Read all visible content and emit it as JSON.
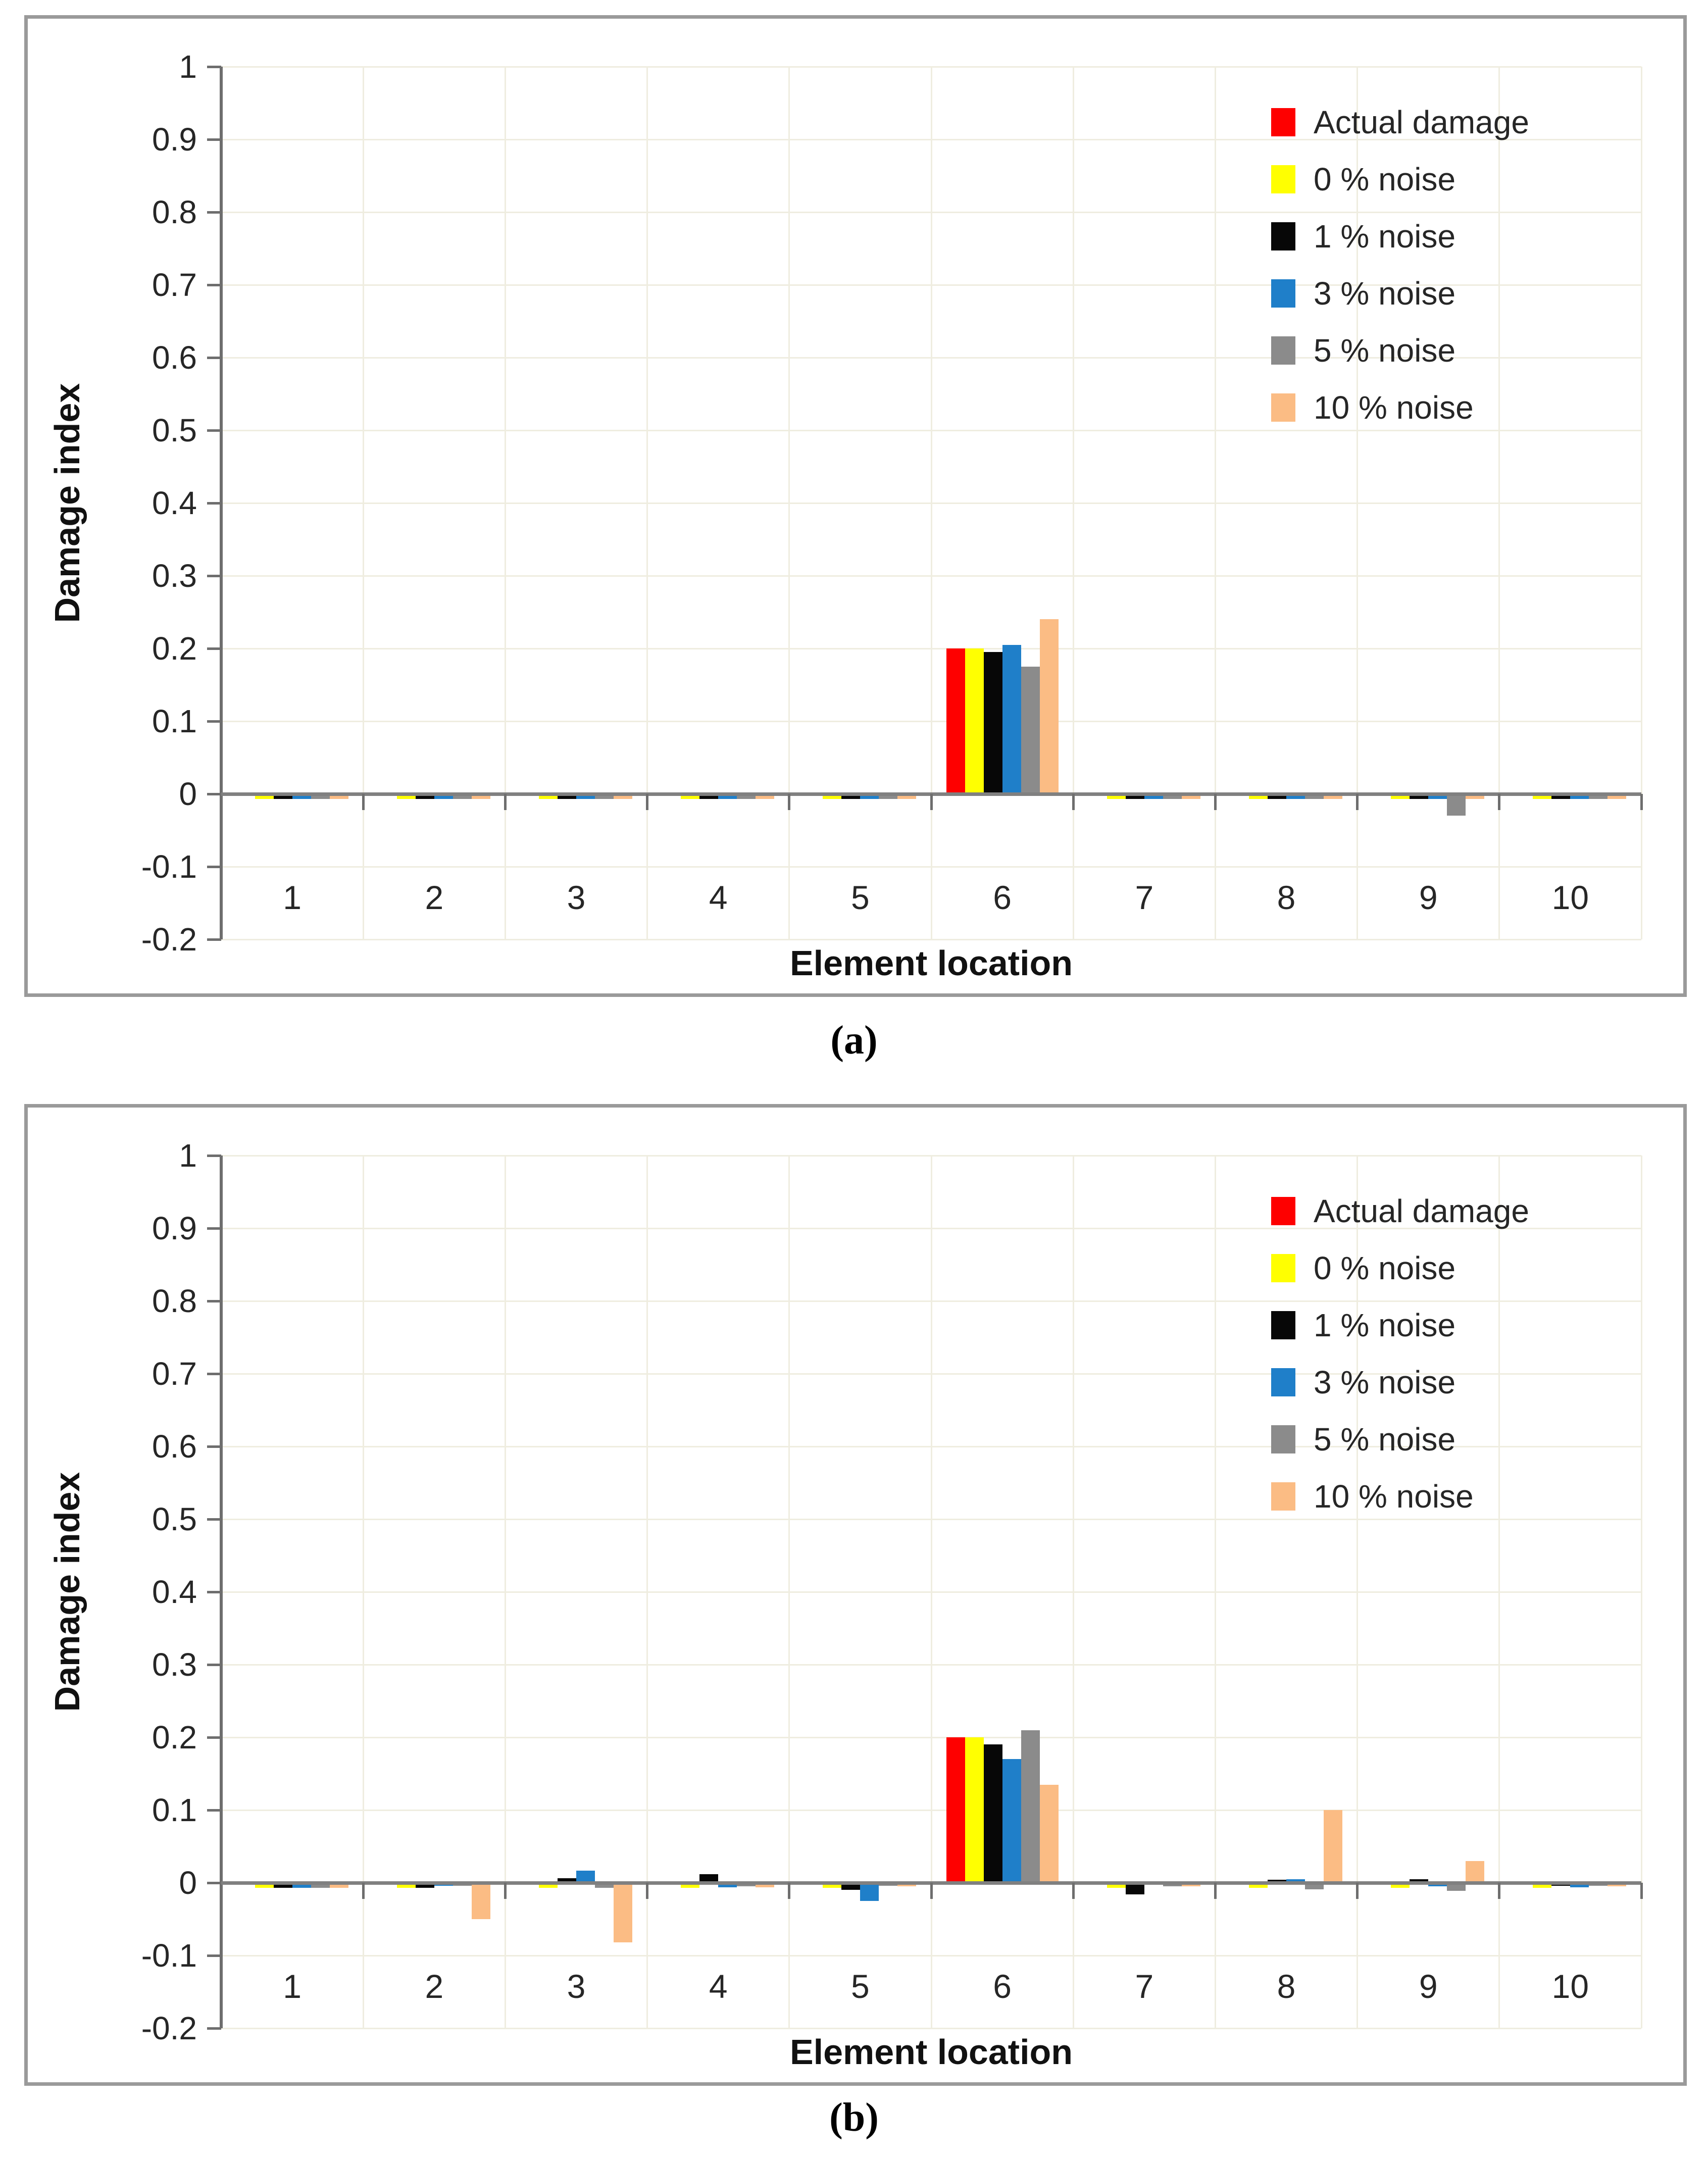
{
  "figure_a": {
    "caption": "(a)"
  },
  "figure_b": {
    "caption": "(b)"
  },
  "colors": {
    "actual_damage": "#fe0000",
    "noise_0": "#ffff01",
    "noise_1": "#070707",
    "noise_3": "#1f7fc9",
    "noise_5": "#8b8b8b",
    "noise_10": "#fbbc84",
    "gridline": "#efede0",
    "axis_line": "#808080",
    "frame_border": "#9a9a9a"
  },
  "chart_data": [
    {
      "id": "a",
      "type": "bar",
      "title": "",
      "xlabel": "Element location",
      "ylabel": "Damage index",
      "categories": [
        "1",
        "2",
        "3",
        "4",
        "5",
        "6",
        "7",
        "8",
        "9",
        "10"
      ],
      "ylim": [
        -0.2,
        1.0
      ],
      "yticks": [
        1,
        0.9,
        0.8,
        0.7,
        0.6,
        0.5,
        0.4,
        0.3,
        0.2,
        0.1,
        0,
        -0.1,
        -0.2
      ],
      "grid": true,
      "legend_position": "inside-top-right",
      "series": [
        {
          "name": "Actual damage",
          "color": "#fe0000",
          "values": [
            0,
            0,
            0,
            0,
            0,
            0.2,
            0,
            0,
            0,
            0
          ]
        },
        {
          "name": "0 % noise",
          "color": "#ffff01",
          "values": [
            -0.007,
            -0.007,
            -0.007,
            -0.007,
            -0.007,
            0.2,
            -0.007,
            -0.007,
            -0.007,
            -0.007
          ]
        },
        {
          "name": "1 % noise",
          "color": "#070707",
          "values": [
            -0.007,
            -0.007,
            -0.007,
            -0.007,
            -0.007,
            0.195,
            -0.007,
            -0.007,
            -0.007,
            -0.007
          ]
        },
        {
          "name": "3 % noise",
          "color": "#1f7fc9",
          "values": [
            -0.007,
            -0.007,
            -0.007,
            -0.007,
            -0.007,
            0.205,
            -0.007,
            -0.007,
            -0.007,
            -0.007
          ]
        },
        {
          "name": "5 % noise",
          "color": "#8b8b8b",
          "values": [
            -0.007,
            -0.007,
            -0.007,
            -0.007,
            -0.007,
            0.175,
            -0.007,
            -0.007,
            -0.03,
            -0.007
          ]
        },
        {
          "name": "10 % noise",
          "color": "#fbbc84",
          "values": [
            -0.007,
            -0.007,
            -0.007,
            -0.007,
            -0.007,
            0.24,
            -0.007,
            -0.007,
            -0.007,
            -0.007
          ]
        }
      ]
    },
    {
      "id": "b",
      "type": "bar",
      "title": "",
      "xlabel": "Element location",
      "ylabel": "Damage index",
      "categories": [
        "1",
        "2",
        "3",
        "4",
        "5",
        "6",
        "7",
        "8",
        "9",
        "10"
      ],
      "ylim": [
        -0.2,
        1.0
      ],
      "yticks": [
        1,
        0.9,
        0.8,
        0.7,
        0.6,
        0.5,
        0.4,
        0.3,
        0.2,
        0.1,
        0,
        -0.1,
        -0.2
      ],
      "grid": true,
      "legend_position": "inside-top-right",
      "series": [
        {
          "name": "Actual damage",
          "color": "#fe0000",
          "values": [
            0,
            0,
            0,
            0,
            0,
            0.2,
            0,
            0,
            0,
            0
          ]
        },
        {
          "name": "0 % noise",
          "color": "#ffff01",
          "values": [
            -0.007,
            -0.007,
            -0.007,
            -0.007,
            -0.007,
            0.2,
            -0.007,
            -0.007,
            -0.007,
            -0.007
          ]
        },
        {
          "name": "1 % noise",
          "color": "#070707",
          "values": [
            -0.007,
            -0.007,
            0.006,
            0.012,
            -0.01,
            0.19,
            -0.016,
            0.004,
            0.005,
            -0.004
          ]
        },
        {
          "name": "3 % noise",
          "color": "#1f7fc9",
          "values": [
            -0.007,
            -0.004,
            0.017,
            -0.006,
            -0.025,
            0.17,
            -0.003,
            0.005,
            -0.005,
            -0.006
          ]
        },
        {
          "name": "5 % noise",
          "color": "#8b8b8b",
          "values": [
            -0.007,
            -0.004,
            -0.007,
            -0.005,
            -0.004,
            0.21,
            -0.005,
            -0.009,
            -0.011,
            -0.004
          ]
        },
        {
          "name": "10 % noise",
          "color": "#fbbc84",
          "values": [
            -0.007,
            -0.05,
            -0.082,
            -0.006,
            -0.005,
            0.135,
            -0.005,
            0.1,
            0.03,
            -0.005
          ]
        }
      ]
    }
  ]
}
